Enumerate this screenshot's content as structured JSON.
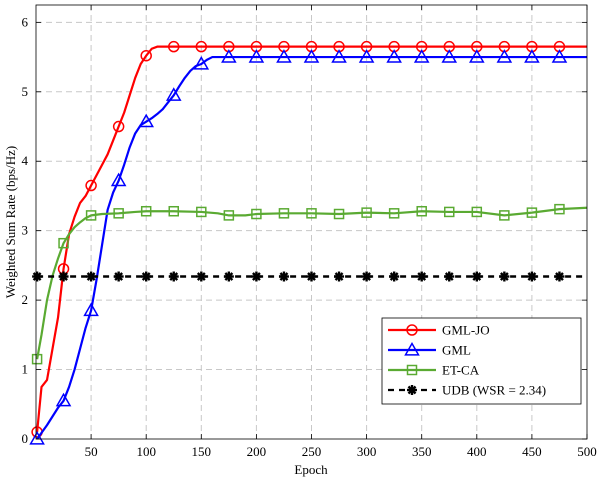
{
  "chart_data": {
    "type": "line",
    "title": "",
    "xlabel": "Epoch",
    "ylabel": "Weighted Sum Rate (bps/Hz)",
    "xlim": [
      0,
      500
    ],
    "ylim": [
      0,
      6.25
    ],
    "xticks": [
      "50",
      "100",
      "150",
      "200",
      "250",
      "300",
      "350",
      "400",
      "450",
      "500"
    ],
    "yticks": [
      "0",
      "1",
      "2",
      "3",
      "4",
      "5",
      "6"
    ],
    "grid": true,
    "legend_position": "bottom-right",
    "series": [
      {
        "name": "GML-JO",
        "color": "#ff0000",
        "marker": "circle",
        "x": [
          1,
          5,
          10,
          15,
          20,
          25,
          30,
          35,
          40,
          45,
          50,
          55,
          60,
          65,
          70,
          75,
          80,
          85,
          90,
          95,
          100,
          105,
          110,
          115,
          120,
          125,
          150,
          175,
          200,
          250,
          300,
          350,
          400,
          450,
          500
        ],
        "y": [
          0.1,
          0.75,
          0.85,
          1.3,
          1.75,
          2.45,
          2.95,
          3.2,
          3.4,
          3.5,
          3.65,
          3.8,
          3.95,
          4.1,
          4.3,
          4.5,
          4.7,
          4.95,
          5.2,
          5.4,
          5.52,
          5.62,
          5.65,
          5.65,
          5.65,
          5.65,
          5.65,
          5.65,
          5.65,
          5.65,
          5.65,
          5.65,
          5.65,
          5.65,
          5.65
        ],
        "marker_x": [
          1,
          25,
          50,
          75,
          100,
          125,
          150,
          175,
          200,
          225,
          250,
          275,
          300,
          325,
          350,
          375,
          400,
          425,
          450,
          475
        ]
      },
      {
        "name": "GML",
        "color": "#0000ff",
        "marker": "triangle",
        "x": [
          1,
          10,
          20,
          25,
          30,
          35,
          40,
          45,
          50,
          55,
          60,
          65,
          70,
          75,
          80,
          85,
          90,
          95,
          100,
          105,
          110,
          115,
          120,
          125,
          130,
          135,
          140,
          145,
          150,
          155,
          160,
          175,
          200,
          250,
          300,
          350,
          400,
          450,
          500
        ],
        "y": [
          0.0,
          0.2,
          0.45,
          0.55,
          0.75,
          1.0,
          1.3,
          1.6,
          1.85,
          2.3,
          2.8,
          3.3,
          3.55,
          3.72,
          3.95,
          4.2,
          4.4,
          4.52,
          4.57,
          4.62,
          4.68,
          4.75,
          4.85,
          4.95,
          5.08,
          5.2,
          5.3,
          5.37,
          5.4,
          5.46,
          5.5,
          5.5,
          5.5,
          5.5,
          5.5,
          5.5,
          5.5,
          5.5,
          5.5
        ],
        "marker_x": [
          1,
          25,
          50,
          75,
          100,
          125,
          150,
          175,
          200,
          225,
          250,
          275,
          300,
          325,
          350,
          375,
          400,
          425,
          450,
          475
        ]
      },
      {
        "name": "ET-CA",
        "color": "#5aaa32",
        "marker": "square",
        "x": [
          1,
          5,
          10,
          15,
          20,
          25,
          30,
          35,
          40,
          45,
          50,
          60,
          75,
          90,
          100,
          125,
          150,
          165,
          175,
          190,
          200,
          225,
          250,
          275,
          300,
          325,
          350,
          375,
          400,
          425,
          450,
          475,
          500
        ],
        "y": [
          1.15,
          1.5,
          2.0,
          2.35,
          2.6,
          2.82,
          2.95,
          3.05,
          3.12,
          3.18,
          3.22,
          3.24,
          3.25,
          3.27,
          3.28,
          3.28,
          3.27,
          3.25,
          3.22,
          3.22,
          3.24,
          3.25,
          3.25,
          3.24,
          3.26,
          3.25,
          3.28,
          3.27,
          3.27,
          3.22,
          3.26,
          3.31,
          3.33
        ],
        "marker_x": [
          1,
          25,
          50,
          75,
          100,
          125,
          150,
          175,
          200,
          225,
          250,
          275,
          300,
          325,
          350,
          375,
          400,
          425,
          450,
          475
        ]
      },
      {
        "name": "UDB (WSR = 2.34)",
        "color": "#000000",
        "marker": "asterisk",
        "x": [
          1,
          500
        ],
        "y": [
          2.34,
          2.34
        ],
        "marker_x": [
          1,
          25,
          50,
          75,
          100,
          125,
          150,
          175,
          200,
          225,
          250,
          275,
          300,
          325,
          350,
          375,
          400,
          425,
          450,
          475
        ]
      }
    ]
  }
}
